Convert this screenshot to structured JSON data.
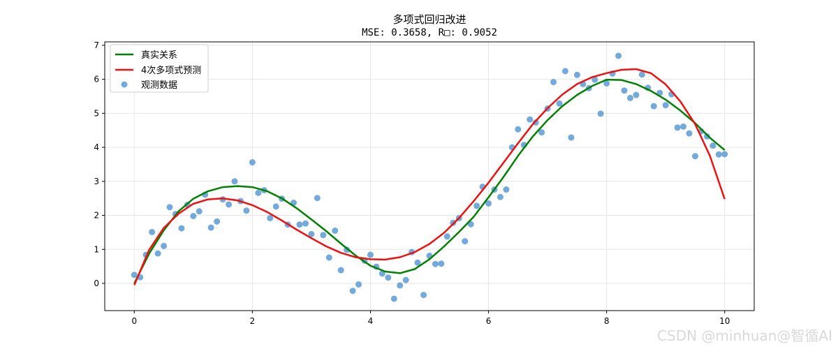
{
  "chart_data": {
    "type": "scatter",
    "title": "多项式回归改进",
    "subtitle": "MSE: 0.3658, R□: 0.9052",
    "xlabel": "",
    "ylabel": "",
    "xlim": [
      -0.5,
      10.5
    ],
    "ylim": [
      -0.8,
      7.1
    ],
    "xticks": [
      0,
      2,
      4,
      6,
      8,
      10
    ],
    "yticks": [
      0,
      1,
      2,
      3,
      4,
      5,
      6,
      7
    ],
    "grid": true,
    "legend_position": "top-left",
    "colors": {
      "true": "#008000",
      "pred": "#ee1111",
      "points": "#5b9bd5"
    },
    "legend": [
      "真实关系",
      "4次多项式预测",
      "观测数据"
    ],
    "series": [
      {
        "name": "真实关系",
        "kind": "line",
        "x": [
          0,
          0.25,
          0.5,
          0.75,
          1,
          1.25,
          1.5,
          1.75,
          2,
          2.25,
          2.5,
          2.75,
          3,
          3.25,
          3.5,
          3.75,
          4,
          4.25,
          4.5,
          4.75,
          5,
          5.25,
          5.5,
          5.75,
          6,
          6.25,
          6.5,
          6.75,
          7,
          7.25,
          7.5,
          7.75,
          8,
          8.25,
          8.5,
          8.75,
          9,
          9.25,
          9.5,
          9.75,
          10
        ],
        "y": [
          0.0,
          0.87,
          1.56,
          2.12,
          2.49,
          2.71,
          2.83,
          2.86,
          2.83,
          2.71,
          2.5,
          2.21,
          1.88,
          1.54,
          1.17,
          0.82,
          0.52,
          0.35,
          0.3,
          0.42,
          0.71,
          1.09,
          1.51,
          1.96,
          2.53,
          3.12,
          3.75,
          4.32,
          4.8,
          5.21,
          5.54,
          5.8,
          5.99,
          5.98,
          5.86,
          5.66,
          5.4,
          5.08,
          4.71,
          4.28,
          3.92
        ]
      },
      {
        "name": "4次多项式预测",
        "kind": "line",
        "x": [
          0,
          0.25,
          0.5,
          0.75,
          1,
          1.25,
          1.5,
          1.75,
          2,
          2.25,
          2.5,
          2.75,
          3,
          3.25,
          3.5,
          3.75,
          4,
          4.25,
          4.5,
          4.75,
          5,
          5.25,
          5.5,
          5.75,
          6,
          6.25,
          6.5,
          6.75,
          7,
          7.25,
          7.5,
          7.75,
          8,
          8.25,
          8.5,
          8.75,
          9,
          9.25,
          9.5,
          9.75,
          10
        ],
        "y": [
          -0.05,
          0.98,
          1.63,
          2.05,
          2.34,
          2.47,
          2.5,
          2.44,
          2.3,
          2.1,
          1.85,
          1.58,
          1.33,
          1.09,
          0.9,
          0.77,
          0.71,
          0.7,
          0.77,
          0.92,
          1.16,
          1.49,
          1.92,
          2.42,
          2.96,
          3.54,
          4.12,
          4.68,
          5.15,
          5.55,
          5.86,
          6.06,
          6.18,
          6.28,
          6.3,
          6.18,
          5.85,
          5.35,
          4.68,
          3.75,
          2.48
        ]
      },
      {
        "name": "观测数据",
        "kind": "scatter",
        "x": [
          0,
          0.1,
          0.2,
          0.3,
          0.4,
          0.5,
          0.6,
          0.7,
          0.8,
          0.9,
          1.0,
          1.1,
          1.2,
          1.3,
          1.4,
          1.5,
          1.6,
          1.7,
          1.8,
          1.9,
          2.0,
          2.1,
          2.2,
          2.3,
          2.4,
          2.5,
          2.6,
          2.7,
          2.8,
          2.9,
          3.0,
          3.1,
          3.2,
          3.3,
          3.4,
          3.5,
          3.6,
          3.7,
          3.8,
          3.9,
          4.0,
          4.1,
          4.2,
          4.3,
          4.4,
          4.5,
          4.6,
          4.7,
          4.8,
          4.9,
          5.0,
          5.1,
          5.2,
          5.3,
          5.4,
          5.5,
          5.6,
          5.7,
          5.8,
          5.9,
          6.0,
          6.1,
          6.2,
          6.3,
          6.4,
          6.5,
          6.6,
          6.7,
          6.8,
          6.9,
          7.0,
          7.1,
          7.2,
          7.3,
          7.4,
          7.5,
          7.6,
          7.7,
          7.8,
          7.9,
          8.0,
          8.1,
          8.2,
          8.3,
          8.4,
          8.5,
          8.6,
          8.7,
          8.8,
          8.9,
          9.0,
          9.1,
          9.2,
          9.3,
          9.4,
          9.5,
          9.6,
          9.7,
          9.8,
          9.9,
          10.0
        ],
        "y": [
          0.25,
          0.18,
          0.84,
          1.51,
          0.88,
          1.1,
          2.24,
          2.04,
          1.62,
          2.31,
          1.98,
          2.12,
          2.61,
          1.64,
          1.82,
          2.47,
          2.32,
          3.0,
          2.42,
          2.14,
          3.56,
          2.66,
          2.74,
          1.92,
          2.26,
          2.49,
          1.73,
          2.37,
          1.73,
          1.76,
          1.45,
          2.51,
          1.42,
          0.76,
          1.55,
          0.39,
          0.99,
          -0.22,
          -0.03,
          0.67,
          0.84,
          0.49,
          0.29,
          0.17,
          -0.45,
          -0.06,
          0.1,
          0.92,
          0.61,
          -0.34,
          0.81,
          0.57,
          0.58,
          1.38,
          1.78,
          1.92,
          1.24,
          1.74,
          2.28,
          2.84,
          2.35,
          2.76,
          2.54,
          2.76,
          4.0,
          4.53,
          4.07,
          4.82,
          4.73,
          4.44,
          5.14,
          5.92,
          5.29,
          6.24,
          4.29,
          6.13,
          5.86,
          5.74,
          5.99,
          4.99,
          5.88,
          6.17,
          6.69,
          5.67,
          5.45,
          5.54,
          6.14,
          5.75,
          5.21,
          5.6,
          5.24,
          5.56,
          4.58,
          4.61,
          4.41,
          3.74,
          4.47,
          4.32,
          4.05,
          3.79,
          3.8
        ]
      }
    ]
  },
  "watermark": "CSDN @minhuan@智循AI"
}
